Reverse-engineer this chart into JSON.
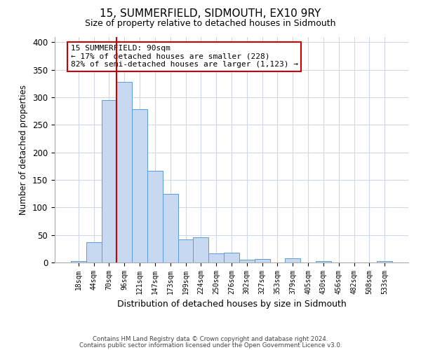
{
  "title": "15, SUMMERFIELD, SIDMOUTH, EX10 9RY",
  "subtitle": "Size of property relative to detached houses in Sidmouth",
  "xlabel": "Distribution of detached houses by size in Sidmouth",
  "ylabel": "Number of detached properties",
  "footer_line1": "Contains HM Land Registry data © Crown copyright and database right 2024.",
  "footer_line2": "Contains public sector information licensed under the Open Government Licence v3.0.",
  "annotation_line1": "15 SUMMERFIELD: 90sqm",
  "annotation_line2": "← 17% of detached houses are smaller (228)",
  "annotation_line3": "82% of semi-detached houses are larger (1,123) →",
  "bar_labels": [
    "18sqm",
    "44sqm",
    "70sqm",
    "96sqm",
    "121sqm",
    "147sqm",
    "173sqm",
    "199sqm",
    "224sqm",
    "250sqm",
    "276sqm",
    "302sqm",
    "327sqm",
    "353sqm",
    "379sqm",
    "405sqm",
    "430sqm",
    "456sqm",
    "482sqm",
    "508sqm",
    "533sqm"
  ],
  "bar_values": [
    3,
    37,
    295,
    328,
    278,
    167,
    124,
    42,
    46,
    17,
    18,
    5,
    6,
    0,
    7,
    0,
    3,
    0,
    0,
    0,
    2
  ],
  "bar_color": "#c6d9f0",
  "bar_edge_color": "#5b9bd5",
  "reference_line_x": 2.5,
  "reference_line_color": "#cc0000",
  "ylim": [
    0,
    410
  ],
  "yticks": [
    0,
    50,
    100,
    150,
    200,
    250,
    300,
    350,
    400
  ],
  "annotation_box_color": "#cc0000",
  "background_color": "#ffffff",
  "grid_color": "#d0d8e8"
}
